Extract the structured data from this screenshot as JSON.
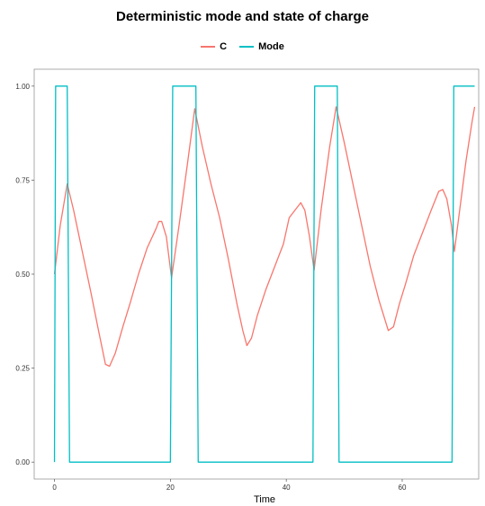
{
  "chart_data": {
    "type": "line",
    "title": "Deterministic mode and state of charge",
    "xlabel": "Time",
    "ylabel": "",
    "xlim": [
      -3.5,
      73.2
    ],
    "ylim": [
      -0.045,
      1.045
    ],
    "x_ticks": [
      0,
      20,
      40,
      60
    ],
    "y_ticks": [
      0.0,
      0.25,
      0.5,
      0.75,
      1.0
    ],
    "y_tick_labels": [
      "0.00",
      "0.25",
      "0.50",
      "0.75",
      "1.00"
    ],
    "grid": false,
    "legend_position": "top",
    "series": [
      {
        "name": "C",
        "color": "#F8766D",
        "points": [
          [
            0,
            0.5
          ],
          [
            1.0,
            0.63
          ],
          [
            2.2,
            0.74
          ],
          [
            3.3,
            0.67
          ],
          [
            4.8,
            0.56
          ],
          [
            6.3,
            0.45
          ],
          [
            7.6,
            0.35
          ],
          [
            8.8,
            0.26
          ],
          [
            9.5,
            0.255
          ],
          [
            10.5,
            0.29
          ],
          [
            11.8,
            0.36
          ],
          [
            13.0,
            0.42
          ],
          [
            14.5,
            0.5
          ],
          [
            16.0,
            0.57
          ],
          [
            17.5,
            0.62
          ],
          [
            18.0,
            0.64
          ],
          [
            18.5,
            0.64
          ],
          [
            19.3,
            0.6
          ],
          [
            20.2,
            0.49
          ],
          [
            21.5,
            0.63
          ],
          [
            23.0,
            0.8
          ],
          [
            24.2,
            0.94
          ],
          [
            25.5,
            0.84
          ],
          [
            27.0,
            0.74
          ],
          [
            28.5,
            0.65
          ],
          [
            30.0,
            0.54
          ],
          [
            31.5,
            0.42
          ],
          [
            32.5,
            0.35
          ],
          [
            33.2,
            0.31
          ],
          [
            34.0,
            0.33
          ],
          [
            35.0,
            0.39
          ],
          [
            36.5,
            0.46
          ],
          [
            38.0,
            0.52
          ],
          [
            39.5,
            0.58
          ],
          [
            40.5,
            0.65
          ],
          [
            41.5,
            0.67
          ],
          [
            42.5,
            0.69
          ],
          [
            43.2,
            0.67
          ],
          [
            44.0,
            0.6
          ],
          [
            44.8,
            0.51
          ],
          [
            46.0,
            0.67
          ],
          [
            47.5,
            0.84
          ],
          [
            48.6,
            0.945
          ],
          [
            50.0,
            0.85
          ],
          [
            51.5,
            0.74
          ],
          [
            53.0,
            0.63
          ],
          [
            54.5,
            0.52
          ],
          [
            56.0,
            0.43
          ],
          [
            57.0,
            0.38
          ],
          [
            57.6,
            0.35
          ],
          [
            58.5,
            0.36
          ],
          [
            59.5,
            0.42
          ],
          [
            60.5,
            0.47
          ],
          [
            62.0,
            0.55
          ],
          [
            63.5,
            0.61
          ],
          [
            65.0,
            0.67
          ],
          [
            66.3,
            0.72
          ],
          [
            67.0,
            0.725
          ],
          [
            67.7,
            0.7
          ],
          [
            68.5,
            0.63
          ],
          [
            69.0,
            0.56
          ],
          [
            70.0,
            0.68
          ],
          [
            71.0,
            0.8
          ],
          [
            72.0,
            0.9
          ],
          [
            72.5,
            0.945
          ]
        ]
      },
      {
        "name": "Mode",
        "color": "#00BFC4",
        "points": [
          [
            0.0,
            0.0
          ],
          [
            0.2,
            1.0
          ],
          [
            2.2,
            1.0
          ],
          [
            2.6,
            0.0
          ],
          [
            20.0,
            0.0
          ],
          [
            20.4,
            1.0
          ],
          [
            24.4,
            1.0
          ],
          [
            24.8,
            0.0
          ],
          [
            44.6,
            0.0
          ],
          [
            44.9,
            1.0
          ],
          [
            48.8,
            1.0
          ],
          [
            49.1,
            0.0
          ],
          [
            68.6,
            0.0
          ],
          [
            68.9,
            1.0
          ],
          [
            72.5,
            1.0
          ]
        ]
      }
    ]
  }
}
